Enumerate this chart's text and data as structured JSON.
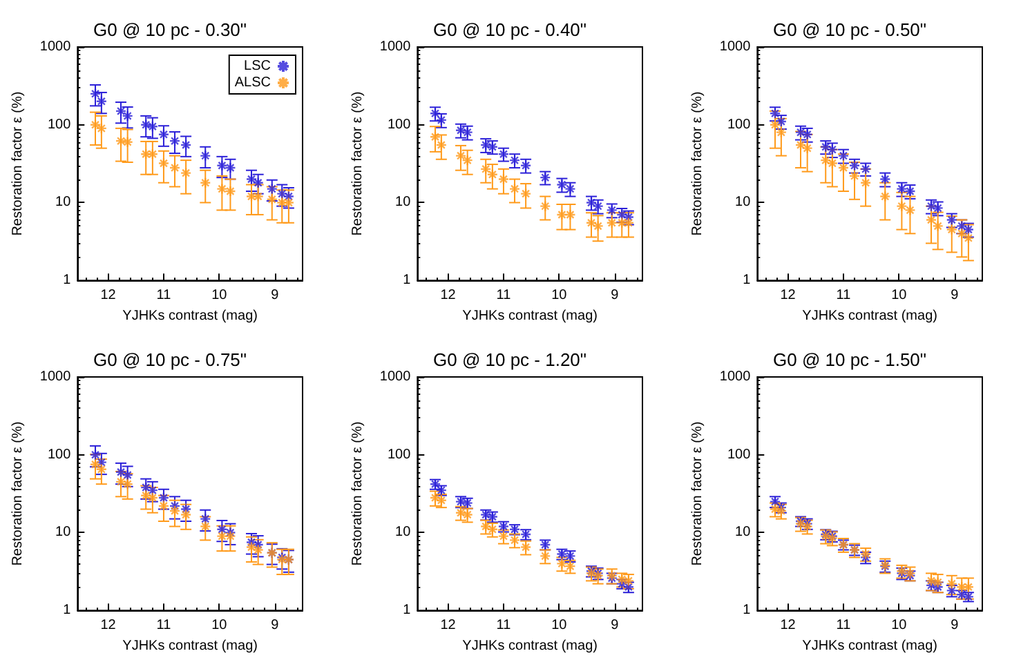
{
  "chart_data": [
    {
      "type": "scatter",
      "title": "G0 @ 10 pc - 0.30\"",
      "xlabel": "YJHKs contrast (mag)",
      "ylabel": "Restoration factor ε (%)",
      "log": "y",
      "xlim": [
        12.55,
        8.5
      ],
      "xticks": [
        12,
        11,
        10,
        9
      ],
      "ylim": [
        1,
        1000
      ],
      "yticks": [
        1,
        10,
        100,
        1000
      ],
      "marker": "cross",
      "grid": false,
      "legend": "top right",
      "x": [
        12.23,
        12.12,
        11.77,
        11.65,
        11.32,
        11.2,
        11.0,
        10.8,
        10.6,
        10.25,
        9.95,
        9.8,
        9.42,
        9.3,
        9.05,
        8.87,
        8.75
      ],
      "series": [
        {
          "name": "LSC",
          "color": "#2b1fd8",
          "values": [
            250,
            200,
            150,
            130,
            100,
            95,
            75,
            62,
            55,
            40,
            30,
            28,
            20,
            18,
            15,
            13,
            12
          ],
          "errors": [
            75,
            60,
            45,
            39,
            30,
            28,
            22,
            19,
            16,
            12,
            9,
            8,
            6,
            5,
            4.5,
            4,
            3.5
          ]
        },
        {
          "name": "ALSC",
          "color": "#ff9a1a",
          "values": [
            100,
            90,
            62,
            60,
            42,
            42,
            32,
            28,
            24,
            18,
            15,
            14,
            12,
            12,
            11,
            10,
            10
          ],
          "errors": [
            45,
            40,
            28,
            27,
            19,
            19,
            14,
            12,
            11,
            8,
            7,
            6,
            5,
            5,
            5,
            4.5,
            4.5
          ]
        }
      ]
    },
    {
      "type": "scatter",
      "title": "G0 @ 10 pc - 0.40\"",
      "xlabel": "YJHKs contrast (mag)",
      "ylabel": "Restoration factor ε (%)",
      "log": "y",
      "xlim": [
        12.55,
        8.5
      ],
      "xticks": [
        12,
        11,
        10,
        9
      ],
      "ylim": [
        1,
        1000
      ],
      "yticks": [
        1,
        10,
        100,
        1000
      ],
      "marker": "cross",
      "grid": false,
      "x": [
        12.23,
        12.12,
        11.77,
        11.65,
        11.32,
        11.2,
        11.0,
        10.8,
        10.6,
        10.25,
        9.95,
        9.8,
        9.42,
        9.3,
        9.05,
        8.87,
        8.75
      ],
      "series": [
        {
          "color": "#2b1fd8",
          "values": [
            140,
            115,
            85,
            80,
            55,
            52,
            42,
            35,
            30,
            21,
            17,
            15,
            10,
            9,
            8,
            7,
            6.5
          ],
          "errors": [
            28,
            23,
            17,
            16,
            11,
            10,
            8,
            7,
            6,
            4,
            3.4,
            3,
            2,
            1.8,
            1.6,
            1.4,
            1.3
          ]
        },
        {
          "color": "#ff9a1a",
          "values": [
            70,
            55,
            40,
            35,
            27,
            23,
            20,
            15,
            13,
            9,
            7,
            7,
            5.5,
            5,
            5.5,
            5.5,
            5.5
          ],
          "errors": [
            25,
            19,
            14,
            12,
            9,
            8,
            7,
            5,
            4.5,
            3,
            2.5,
            2.5,
            1.9,
            1.8,
            1.9,
            1.9,
            1.9
          ]
        }
      ]
    },
    {
      "type": "scatter",
      "title": "G0 @ 10 pc - 0.50\"",
      "xlabel": "YJHKs contrast (mag)",
      "ylabel": "Restoration factor ε (%)",
      "log": "y",
      "xlim": [
        12.55,
        8.5
      ],
      "xticks": [
        12,
        11,
        10,
        9
      ],
      "ylim": [
        1,
        1000
      ],
      "yticks": [
        1,
        10,
        100,
        1000
      ],
      "marker": "cross",
      "grid": false,
      "x": [
        12.23,
        12.12,
        11.77,
        11.65,
        11.32,
        11.2,
        11.0,
        10.8,
        10.6,
        10.25,
        9.95,
        9.8,
        9.42,
        9.3,
        9.05,
        8.87,
        8.75
      ],
      "series": [
        {
          "color": "#2b1fd8",
          "values": [
            140,
            110,
            80,
            75,
            52,
            48,
            40,
            30,
            27,
            20,
            15,
            14,
            9,
            8.5,
            6,
            5,
            4.5
          ],
          "errors": [
            28,
            22,
            16,
            15,
            10,
            10,
            8,
            6,
            5,
            4,
            3,
            2.8,
            1.8,
            1.7,
            1.2,
            1,
            0.9
          ]
        },
        {
          "color": "#ff9a1a",
          "values": [
            100,
            80,
            55,
            50,
            35,
            32,
            28,
            22,
            18,
            12,
            9,
            8,
            6,
            5,
            4.5,
            4,
            3.5
          ],
          "errors": [
            50,
            40,
            27,
            25,
            17,
            16,
            14,
            11,
            9,
            6,
            4.5,
            4,
            3,
            2.5,
            2.2,
            2,
            1.7
          ]
        }
      ]
    },
    {
      "type": "scatter",
      "title": "G0 @ 10 pc - 0.75\"",
      "xlabel": "YJHKs contrast (mag)",
      "ylabel": "Restoration factor ε (%)",
      "log": "y",
      "xlim": [
        12.55,
        8.5
      ],
      "xticks": [
        12,
        11,
        10,
        9
      ],
      "ylim": [
        1,
        1000
      ],
      "yticks": [
        1,
        10,
        100,
        1000
      ],
      "marker": "cross",
      "grid": false,
      "x": [
        12.23,
        12.12,
        11.77,
        11.65,
        11.32,
        11.2,
        11.0,
        10.8,
        10.6,
        10.25,
        9.95,
        9.8,
        9.42,
        9.3,
        9.05,
        8.87,
        8.75
      ],
      "series": [
        {
          "color": "#2b1fd8",
          "values": [
            100,
            80,
            60,
            55,
            38,
            35,
            28,
            22,
            20,
            15,
            11,
            10,
            7.5,
            7,
            5.5,
            4.8,
            4.5
          ],
          "errors": [
            30,
            24,
            18,
            16,
            11,
            10,
            8,
            7,
            6,
            4.5,
            3.3,
            3,
            2.2,
            2.1,
            1.6,
            1.4,
            1.4
          ]
        },
        {
          "color": "#ff9a1a",
          "values": [
            75,
            65,
            45,
            42,
            30,
            28,
            22,
            19,
            17,
            12,
            9,
            9,
            6.5,
            6,
            5.5,
            4.5,
            4.5
          ],
          "errors": [
            26,
            23,
            16,
            15,
            10,
            10,
            8,
            7,
            6,
            4,
            3.2,
            3.2,
            2.3,
            2.1,
            1.9,
            1.6,
            1.6
          ]
        }
      ]
    },
    {
      "type": "scatter",
      "title": "G0 @ 10 pc - 1.20\"",
      "xlabel": "YJHKs contrast (mag)",
      "ylabel": "Restoration factor ε (%)",
      "log": "y",
      "xlim": [
        12.55,
        8.5
      ],
      "xticks": [
        12,
        11,
        10,
        9
      ],
      "ylim": [
        1,
        1000
      ],
      "yticks": [
        1,
        10,
        100,
        1000
      ],
      "marker": "cross",
      "grid": false,
      "x": [
        12.23,
        12.12,
        11.77,
        11.65,
        11.32,
        11.2,
        11.0,
        10.8,
        10.6,
        10.25,
        9.95,
        9.8,
        9.42,
        9.3,
        9.05,
        8.87,
        8.75
      ],
      "series": [
        {
          "color": "#2b1fd8",
          "values": [
            42,
            35,
            25,
            24,
            17,
            16,
            12,
            11,
            9.5,
            7,
            5.3,
            5,
            3.2,
            3,
            2.6,
            2.2,
            2
          ],
          "errors": [
            6,
            5,
            4,
            3.6,
            2.5,
            2.4,
            1.8,
            1.6,
            1.4,
            1,
            0.8,
            0.8,
            0.5,
            0.5,
            0.4,
            0.3,
            0.3
          ]
        },
        {
          "color": "#ff9a1a",
          "values": [
            28,
            26,
            18,
            17,
            12,
            11,
            9,
            8,
            6.5,
            5,
            4,
            3.7,
            3,
            2.8,
            2.8,
            2.5,
            2.4
          ],
          "errors": [
            6,
            5,
            3.6,
            3.4,
            2.4,
            2.2,
            1.8,
            1.6,
            1.3,
            1,
            0.8,
            0.7,
            0.6,
            0.6,
            0.6,
            0.5,
            0.5
          ]
        }
      ]
    },
    {
      "type": "scatter",
      "title": "G0 @ 10 pc - 1.50\"",
      "xlabel": "YJHKs contrast (mag)",
      "ylabel": "Restoration factor ε (%)",
      "log": "y",
      "xlim": [
        12.55,
        8.5
      ],
      "xticks": [
        12,
        11,
        10,
        9
      ],
      "ylim": [
        1,
        1000
      ],
      "yticks": [
        1,
        10,
        100,
        1000
      ],
      "marker": "cross",
      "grid": false,
      "x": [
        12.23,
        12.12,
        11.77,
        11.65,
        11.32,
        11.2,
        11.0,
        10.8,
        10.6,
        10.25,
        9.95,
        9.8,
        9.42,
        9.3,
        9.05,
        8.87,
        8.75
      ],
      "series": [
        {
          "color": "#2b1fd8",
          "values": [
            25,
            21,
            14,
            13,
            9.5,
            9,
            7,
            6,
            4.8,
            3.7,
            3,
            2.8,
            2.1,
            2,
            1.8,
            1.6,
            1.5
          ],
          "errors": [
            4,
            3,
            2,
            2,
            1.4,
            1.4,
            1,
            0.9,
            0.8,
            0.6,
            0.5,
            0.4,
            0.3,
            0.3,
            0.3,
            0.2,
            0.2
          ]
        },
        {
          "color": "#ff9a1a",
          "values": [
            20,
            19,
            13,
            12,
            9,
            8.5,
            7,
            6,
            5.3,
            3.8,
            3.2,
            3,
            2.4,
            2.3,
            2.2,
            2,
            2
          ],
          "errors": [
            4,
            4,
            2.6,
            2.4,
            1.8,
            1.7,
            1.4,
            1.2,
            1,
            0.8,
            0.6,
            0.6,
            0.6,
            0.6,
            0.6,
            0.6,
            0.6
          ]
        }
      ]
    }
  ]
}
